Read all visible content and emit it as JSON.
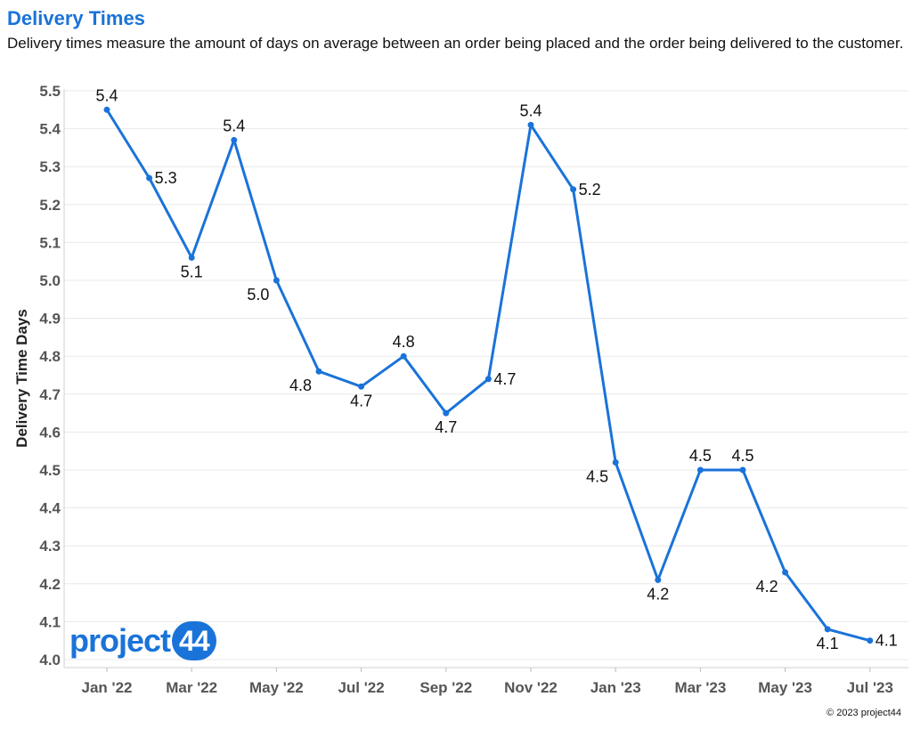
{
  "title": "Delivery Times",
  "subtitle": "Delivery times measure the amount of days on average between an order being placed and the order being delivered to the customer.",
  "footer": "© 2023 project44",
  "logo": {
    "text": "project",
    "number": "44"
  },
  "colors": {
    "line": "#1a73d9",
    "title": "#1a73d9",
    "grid": "#e8e8e8"
  },
  "chart_data": {
    "type": "line",
    "title": "Delivery Times",
    "ylabel": "Delivery Time Days",
    "xlabel": "",
    "ylim": [
      4.0,
      5.5
    ],
    "yticks": [
      "4.0",
      "4.1",
      "4.2",
      "4.3",
      "4.4",
      "4.5",
      "4.6",
      "4.7",
      "4.8",
      "4.9",
      "5.0",
      "5.1",
      "5.2",
      "5.3",
      "5.4",
      "5.5"
    ],
    "grid": true,
    "x": [
      "Jan '22",
      "Feb '22",
      "Mar '22",
      "Apr '22",
      "May '22",
      "Jun '22",
      "Jul '22",
      "Aug '22",
      "Sep '22",
      "Oct '22",
      "Nov '22",
      "Dec '22",
      "Jan '23",
      "Feb '23",
      "Mar '23",
      "Apr '23",
      "May '23",
      "Jun '23",
      "Jul '23"
    ],
    "xtick_labels": [
      "Jan '22",
      "Mar '22",
      "May '22",
      "Jul '22",
      "Sep '22",
      "Nov '22",
      "Jan '23",
      "Mar '23",
      "May '23",
      "Jul '23"
    ],
    "values": [
      5.45,
      5.27,
      5.06,
      5.37,
      5.0,
      4.76,
      4.72,
      4.8,
      4.65,
      4.74,
      5.41,
      5.24,
      4.52,
      4.21,
      4.5,
      4.5,
      4.23,
      4.08,
      4.05
    ],
    "data_labels": [
      "5.4",
      "5.3",
      "5.1",
      "5.4",
      "5.0",
      "4.8",
      "4.7",
      "4.8",
      "4.7",
      "4.7",
      "5.4",
      "5.2",
      "4.5",
      "4.2",
      "4.5",
      "4.5",
      "4.2",
      "4.1",
      "4.1"
    ],
    "label_pos": [
      "above",
      "right",
      "below",
      "above",
      "left",
      "left",
      "below",
      "above",
      "below",
      "right",
      "above",
      "right",
      "left",
      "below",
      "above",
      "above",
      "left",
      "below",
      "right"
    ]
  }
}
